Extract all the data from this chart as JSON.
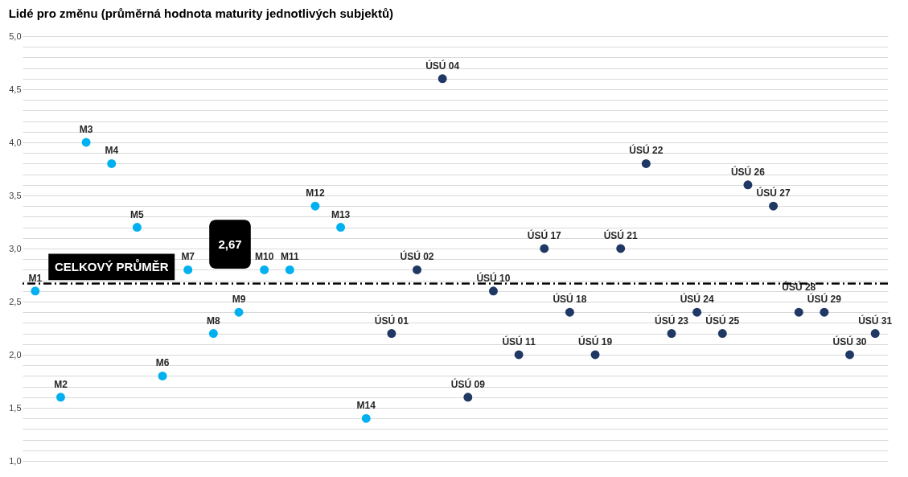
{
  "chart_data": {
    "type": "scatter",
    "title": "Lidé pro změnu (průměrná hodnota maturity jednotlivých subjektů)",
    "categories": [
      "M1",
      "M2",
      "M3",
      "M4",
      "M5",
      "M6",
      "M7",
      "M8",
      "M9",
      "M10",
      "M11",
      "M12",
      "M13",
      "M14",
      "ÚSÚ 01",
      "ÚSÚ 02",
      "ÚSÚ 04",
      "ÚSÚ 09",
      "ÚSÚ 10",
      "ÚSÚ 11",
      "ÚSÚ 17",
      "ÚSÚ 18",
      "ÚSÚ 19",
      "ÚSÚ 21",
      "ÚSÚ 22",
      "ÚSÚ 23",
      "ÚSÚ 24",
      "ÚSÚ 25",
      "ÚSÚ 26",
      "ÚSÚ 27",
      "ÚSÚ 28",
      "ÚSÚ 29",
      "ÚSÚ 30",
      "ÚSÚ 31"
    ],
    "series": [
      {
        "color": "#00b0f0",
        "values": [
          2.6,
          1.6,
          4.0,
          3.8,
          3.2,
          1.8,
          2.8,
          2.2,
          2.4,
          2.8,
          2.8,
          3.4,
          3.2,
          1.4,
          null,
          null,
          null,
          null,
          null,
          null,
          null,
          null,
          null,
          null,
          null,
          null,
          null,
          null,
          null,
          null,
          null,
          null,
          null,
          null
        ]
      },
      {
        "color": "#1f3864",
        "values": [
          null,
          null,
          null,
          null,
          null,
          null,
          null,
          null,
          null,
          null,
          null,
          null,
          null,
          null,
          2.2,
          2.8,
          4.6,
          1.6,
          2.6,
          2.0,
          3.0,
          2.4,
          2.0,
          3.0,
          3.8,
          2.2,
          2.4,
          2.2,
          3.6,
          3.4,
          2.4,
          2.4,
          2.0,
          2.2
        ]
      }
    ],
    "ylim": [
      1.0,
      5.0
    ],
    "yticks": [
      {
        "value": 1.0,
        "label": "1,0"
      },
      {
        "value": 1.1,
        "label": null
      },
      {
        "value": 1.2,
        "label": null
      },
      {
        "value": 1.3,
        "label": null
      },
      {
        "value": 1.4,
        "label": null
      },
      {
        "value": 1.5,
        "label": "1,5"
      },
      {
        "value": 1.6,
        "label": null
      },
      {
        "value": 1.7,
        "label": null
      },
      {
        "value": 1.8,
        "label": null
      },
      {
        "value": 1.9,
        "label": null
      },
      {
        "value": 2.0,
        "label": "2,0"
      },
      {
        "value": 2.1,
        "label": null
      },
      {
        "value": 2.2,
        "label": null
      },
      {
        "value": 2.3,
        "label": null
      },
      {
        "value": 2.4,
        "label": null
      },
      {
        "value": 2.5,
        "label": "2,5"
      },
      {
        "value": 2.6,
        "label": null
      },
      {
        "value": 2.7,
        "label": null
      },
      {
        "value": 2.8,
        "label": null
      },
      {
        "value": 2.9,
        "label": null
      },
      {
        "value": 3.0,
        "label": "3,0"
      },
      {
        "value": 3.1,
        "label": null
      },
      {
        "value": 3.2,
        "label": null
      },
      {
        "value": 3.3,
        "label": null
      },
      {
        "value": 3.4,
        "label": null
      },
      {
        "value": 3.5,
        "label": "3,5"
      },
      {
        "value": 3.6,
        "label": null
      },
      {
        "value": 3.7,
        "label": null
      },
      {
        "value": 3.8,
        "label": null
      },
      {
        "value": 3.9,
        "label": null
      },
      {
        "value": 4.0,
        "label": "4,0"
      },
      {
        "value": 4.1,
        "label": null
      },
      {
        "value": 4.2,
        "label": null
      },
      {
        "value": 4.3,
        "label": null
      },
      {
        "value": 4.4,
        "label": null
      },
      {
        "value": 4.5,
        "label": "4,5"
      },
      {
        "value": 4.6,
        "label": null
      },
      {
        "value": 4.7,
        "label": null
      },
      {
        "value": 4.8,
        "label": null
      },
      {
        "value": 4.9,
        "label": null
      },
      {
        "value": 5.0,
        "label": "5,0"
      }
    ],
    "ref_lines": [
      {
        "axis": "y",
        "value": 2.67,
        "label": "CELKOVÝ PRŮMĚR",
        "color": "#000000",
        "line_style": "dashdot"
      }
    ],
    "annotations": [
      "2,67"
    ],
    "grid": "y",
    "marker": "circle",
    "tick_labels": "y",
    "legend": false
  }
}
